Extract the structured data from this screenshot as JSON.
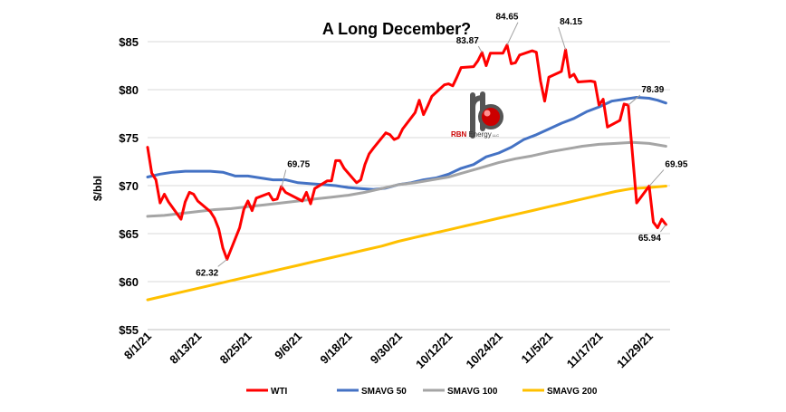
{
  "chart_data": {
    "type": "line",
    "title": "A Long December?",
    "ylabel": "$/bbl",
    "xlabel": "",
    "ylim": [
      55,
      85
    ],
    "yticks": [
      55,
      60,
      65,
      70,
      75,
      80,
      85
    ],
    "ytick_labels": [
      "$55",
      "$60",
      "$65",
      "$70",
      "$75",
      "$80",
      "$85"
    ],
    "xlim": [
      "2021-08-01",
      "2021-12-04"
    ],
    "xticks": [
      "2021-08-01",
      "2021-08-13",
      "2021-08-25",
      "2021-09-06",
      "2021-09-18",
      "2021-09-30",
      "2021-10-12",
      "2021-10-24",
      "2021-11-05",
      "2021-11-17",
      "2021-11-29"
    ],
    "xtick_labels": [
      "8/1/21",
      "8/13/21",
      "8/25/21",
      "9/6/21",
      "9/18/21",
      "9/30/21",
      "10/12/21",
      "10/24/21",
      "11/5/21",
      "11/17/21",
      "11/29/21"
    ],
    "grid": "horizontal",
    "legend_position": "bottom",
    "series": [
      {
        "name": "WTI",
        "color": "#ff0000",
        "points": [
          [
            "2021-08-01",
            74.0
          ],
          [
            "2021-08-02",
            71.3
          ],
          [
            "2021-08-03",
            70.6
          ],
          [
            "2021-08-04",
            68.2
          ],
          [
            "2021-08-05",
            69.1
          ],
          [
            "2021-08-06",
            68.3
          ],
          [
            "2021-08-09",
            66.5
          ],
          [
            "2021-08-10",
            68.3
          ],
          [
            "2021-08-11",
            69.3
          ],
          [
            "2021-08-12",
            69.1
          ],
          [
            "2021-08-13",
            68.4
          ],
          [
            "2021-08-16",
            67.3
          ],
          [
            "2021-08-17",
            66.6
          ],
          [
            "2021-08-18",
            65.5
          ],
          [
            "2021-08-19",
            63.5
          ],
          [
            "2021-08-20",
            62.32
          ],
          [
            "2021-08-23",
            65.6
          ],
          [
            "2021-08-24",
            67.5
          ],
          [
            "2021-08-25",
            68.4
          ],
          [
            "2021-08-26",
            67.4
          ],
          [
            "2021-08-27",
            68.7
          ],
          [
            "2021-08-30",
            69.2
          ],
          [
            "2021-08-31",
            68.5
          ],
          [
            "2021-09-01",
            68.6
          ],
          [
            "2021-09-02",
            69.9
          ],
          [
            "2021-09-03",
            69.3
          ],
          [
            "2021-09-07",
            68.4
          ],
          [
            "2021-09-08",
            69.3
          ],
          [
            "2021-09-09",
            68.1
          ],
          [
            "2021-09-10",
            69.7
          ],
          [
            "2021-09-13",
            70.5
          ],
          [
            "2021-09-14",
            70.5
          ],
          [
            "2021-09-15",
            72.6
          ],
          [
            "2021-09-16",
            72.6
          ],
          [
            "2021-09-17",
            71.8
          ],
          [
            "2021-09-20",
            70.3
          ],
          [
            "2021-09-21",
            70.6
          ],
          [
            "2021-09-22",
            72.2
          ],
          [
            "2021-09-23",
            73.3
          ],
          [
            "2021-09-24",
            73.9
          ],
          [
            "2021-09-27",
            75.5
          ],
          [
            "2021-09-28",
            75.3
          ],
          [
            "2021-09-29",
            74.8
          ],
          [
            "2021-09-30",
            75.0
          ],
          [
            "2021-10-01",
            75.9
          ],
          [
            "2021-10-04",
            77.6
          ],
          [
            "2021-10-05",
            78.9
          ],
          [
            "2021-10-06",
            77.4
          ],
          [
            "2021-10-07",
            78.3
          ],
          [
            "2021-10-08",
            79.3
          ],
          [
            "2021-10-11",
            80.5
          ],
          [
            "2021-10-12",
            80.6
          ],
          [
            "2021-10-13",
            80.4
          ],
          [
            "2021-10-14",
            81.3
          ],
          [
            "2021-10-15",
            82.3
          ],
          [
            "2021-10-18",
            82.4
          ],
          [
            "2021-10-19",
            83.0
          ],
          [
            "2021-10-20",
            83.87
          ],
          [
            "2021-10-21",
            82.5
          ],
          [
            "2021-10-22",
            83.8
          ],
          [
            "2021-10-25",
            83.8
          ],
          [
            "2021-10-26",
            84.65
          ],
          [
            "2021-10-27",
            82.7
          ],
          [
            "2021-10-28",
            82.8
          ],
          [
            "2021-10-29",
            83.6
          ],
          [
            "2021-11-01",
            84.05
          ],
          [
            "2021-11-02",
            83.9
          ],
          [
            "2021-11-03",
            80.9
          ],
          [
            "2021-11-04",
            78.8
          ],
          [
            "2021-11-05",
            81.3
          ],
          [
            "2021-11-08",
            81.9
          ],
          [
            "2021-11-09",
            84.15
          ],
          [
            "2021-11-10",
            81.3
          ],
          [
            "2021-11-11",
            81.6
          ],
          [
            "2021-11-12",
            80.8
          ],
          [
            "2021-11-15",
            80.9
          ],
          [
            "2021-11-16",
            80.8
          ],
          [
            "2021-11-17",
            78.4
          ],
          [
            "2021-11-18",
            79.0
          ],
          [
            "2021-11-19",
            76.1
          ],
          [
            "2021-11-22",
            76.8
          ],
          [
            "2021-11-23",
            78.5
          ],
          [
            "2021-11-24",
            78.39
          ],
          [
            "2021-11-26",
            68.2
          ],
          [
            "2021-11-29",
            69.95
          ],
          [
            "2021-11-30",
            66.2
          ],
          [
            "2021-12-01",
            65.6
          ],
          [
            "2021-12-02",
            66.5
          ],
          [
            "2021-12-03",
            65.94
          ]
        ]
      },
      {
        "name": "SMAVG 50",
        "color": "#4472c4",
        "points": [
          [
            "2021-08-01",
            70.9
          ],
          [
            "2021-08-04",
            71.2
          ],
          [
            "2021-08-07",
            71.4
          ],
          [
            "2021-08-10",
            71.5
          ],
          [
            "2021-08-13",
            71.5
          ],
          [
            "2021-08-16",
            71.5
          ],
          [
            "2021-08-19",
            71.4
          ],
          [
            "2021-08-22",
            71.0
          ],
          [
            "2021-08-25",
            71.0
          ],
          [
            "2021-08-28",
            70.8
          ],
          [
            "2021-08-31",
            70.6
          ],
          [
            "2021-09-03",
            70.6
          ],
          [
            "2021-09-06",
            70.3
          ],
          [
            "2021-09-09",
            70.2
          ],
          [
            "2021-09-12",
            70.1
          ],
          [
            "2021-09-15",
            70.0
          ],
          [
            "2021-09-18",
            69.8
          ],
          [
            "2021-09-21",
            69.7
          ],
          [
            "2021-09-24",
            69.6
          ],
          [
            "2021-09-27",
            69.75
          ],
          [
            "2021-09-30",
            70.1
          ],
          [
            "2021-10-03",
            70.3
          ],
          [
            "2021-10-06",
            70.6
          ],
          [
            "2021-10-09",
            70.8
          ],
          [
            "2021-10-12",
            71.2
          ],
          [
            "2021-10-15",
            71.8
          ],
          [
            "2021-10-18",
            72.2
          ],
          [
            "2021-10-21",
            73.0
          ],
          [
            "2021-10-24",
            73.4
          ],
          [
            "2021-10-27",
            74.0
          ],
          [
            "2021-10-30",
            74.8
          ],
          [
            "2021-11-02",
            75.3
          ],
          [
            "2021-11-05",
            75.9
          ],
          [
            "2021-11-08",
            76.5
          ],
          [
            "2021-11-11",
            77.0
          ],
          [
            "2021-11-14",
            77.7
          ],
          [
            "2021-11-17",
            78.2
          ],
          [
            "2021-11-20",
            78.8
          ],
          [
            "2021-11-23",
            79.0
          ],
          [
            "2021-11-26",
            79.2
          ],
          [
            "2021-11-29",
            79.1
          ],
          [
            "2021-12-01",
            78.9
          ],
          [
            "2021-12-03",
            78.6
          ]
        ]
      },
      {
        "name": "SMAVG 100",
        "color": "#a5a5a5",
        "points": [
          [
            "2021-08-01",
            66.8
          ],
          [
            "2021-08-05",
            66.9
          ],
          [
            "2021-08-09",
            67.1
          ],
          [
            "2021-08-13",
            67.3
          ],
          [
            "2021-08-17",
            67.5
          ],
          [
            "2021-08-21",
            67.6
          ],
          [
            "2021-08-25",
            67.8
          ],
          [
            "2021-08-29",
            68.0
          ],
          [
            "2021-09-02",
            68.2
          ],
          [
            "2021-09-06",
            68.4
          ],
          [
            "2021-09-10",
            68.6
          ],
          [
            "2021-09-14",
            68.8
          ],
          [
            "2021-09-18",
            69.0
          ],
          [
            "2021-09-22",
            69.3
          ],
          [
            "2021-09-26",
            69.7
          ],
          [
            "2021-09-30",
            70.1
          ],
          [
            "2021-10-04",
            70.3
          ],
          [
            "2021-10-08",
            70.6
          ],
          [
            "2021-10-12",
            70.9
          ],
          [
            "2021-10-16",
            71.4
          ],
          [
            "2021-10-20",
            71.9
          ],
          [
            "2021-10-24",
            72.4
          ],
          [
            "2021-10-28",
            72.8
          ],
          [
            "2021-11-01",
            73.1
          ],
          [
            "2021-11-05",
            73.5
          ],
          [
            "2021-11-09",
            73.8
          ],
          [
            "2021-11-13",
            74.1
          ],
          [
            "2021-11-17",
            74.3
          ],
          [
            "2021-11-21",
            74.4
          ],
          [
            "2021-11-25",
            74.5
          ],
          [
            "2021-11-29",
            74.4
          ],
          [
            "2021-12-03",
            74.1
          ]
        ]
      },
      {
        "name": "SMAVG 200",
        "color": "#ffc000",
        "points": [
          [
            "2021-08-01",
            58.1
          ],
          [
            "2021-08-05",
            58.5
          ],
          [
            "2021-08-09",
            58.9
          ],
          [
            "2021-08-13",
            59.3
          ],
          [
            "2021-08-17",
            59.7
          ],
          [
            "2021-08-21",
            60.1
          ],
          [
            "2021-08-25",
            60.5
          ],
          [
            "2021-08-29",
            60.9
          ],
          [
            "2021-09-02",
            61.3
          ],
          [
            "2021-09-06",
            61.7
          ],
          [
            "2021-09-10",
            62.1
          ],
          [
            "2021-09-14",
            62.5
          ],
          [
            "2021-09-18",
            62.9
          ],
          [
            "2021-09-22",
            63.3
          ],
          [
            "2021-09-26",
            63.7
          ],
          [
            "2021-09-30",
            64.2
          ],
          [
            "2021-10-04",
            64.6
          ],
          [
            "2021-10-08",
            65.0
          ],
          [
            "2021-10-12",
            65.4
          ],
          [
            "2021-10-16",
            65.8
          ],
          [
            "2021-10-20",
            66.2
          ],
          [
            "2021-10-24",
            66.6
          ],
          [
            "2021-10-28",
            67.0
          ],
          [
            "2021-11-01",
            67.4
          ],
          [
            "2021-11-05",
            67.8
          ],
          [
            "2021-11-09",
            68.2
          ],
          [
            "2021-11-13",
            68.6
          ],
          [
            "2021-11-17",
            69.0
          ],
          [
            "2021-11-21",
            69.4
          ],
          [
            "2021-11-25",
            69.7
          ],
          [
            "2021-11-29",
            69.8
          ],
          [
            "2021-12-03",
            69.95
          ]
        ]
      }
    ],
    "annotations": [
      {
        "text": "62.32",
        "x": "2021-08-20",
        "y": 62.32
      },
      {
        "text": "69.75",
        "x": "2021-09-02",
        "y": 69.75
      },
      {
        "text": "83.87",
        "x": "2021-10-20",
        "y": 83.87
      },
      {
        "text": "84.65",
        "x": "2021-10-26",
        "y": 84.65
      },
      {
        "text": "84.15",
        "x": "2021-11-09",
        "y": 84.15
      },
      {
        "text": "78.39",
        "x": "2021-11-24",
        "y": 78.39
      },
      {
        "text": "69.95",
        "x": "2021-11-29",
        "y": 69.95
      },
      {
        "text": "65.94",
        "x": "2021-12-03",
        "y": 65.94
      }
    ]
  },
  "logo": {
    "glyph": "rb",
    "text_brand": "RBN",
    "text_name": "Energy",
    "text_suffix": "LLC"
  }
}
